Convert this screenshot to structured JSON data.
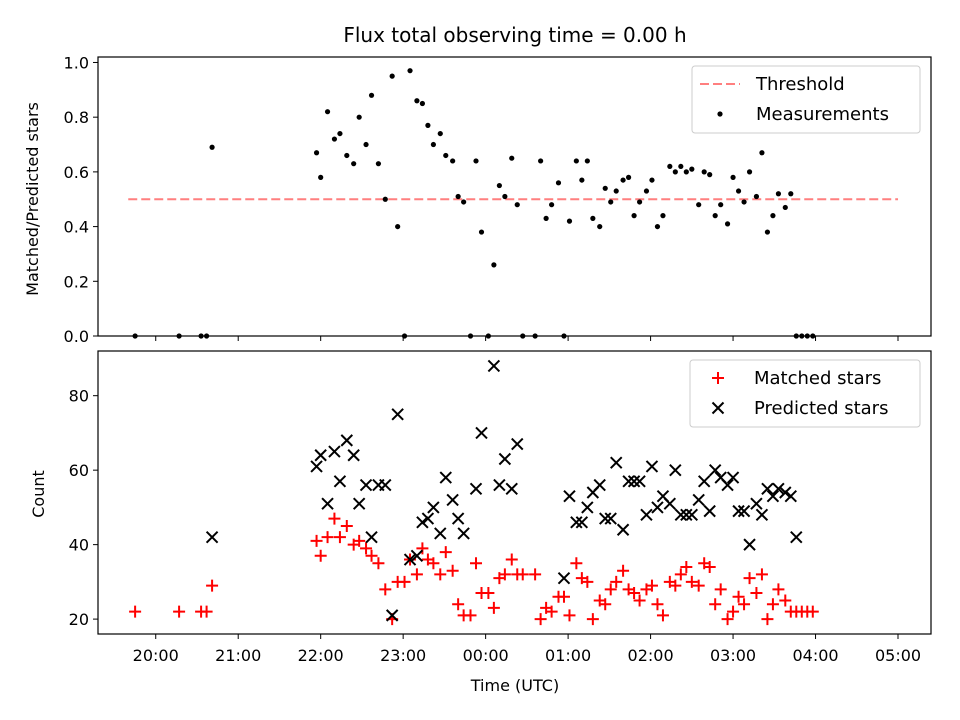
{
  "chart_data": [
    {
      "type": "scatter",
      "title": "Flux total observing time = 0.00 h",
      "ylabel": "Matched/Predicted stars",
      "ylim": [
        0,
        1.02
      ],
      "yticks": [
        0.0,
        0.2,
        0.4,
        0.6,
        0.8,
        1.0
      ],
      "ytick_labels": [
        "0.0",
        "0.2",
        "0.4",
        "0.6",
        "0.8",
        "1.0"
      ],
      "xticks": [
        "20:00",
        "21:00",
        "22:00",
        "23:00",
        "00:00",
        "01:00",
        "02:00",
        "03:00",
        "04:00",
        "05:00"
      ],
      "legend": {
        "position": "upper right",
        "items": [
          "Threshold",
          "Measurements"
        ]
      },
      "threshold": {
        "name": "Threshold",
        "value": 0.5,
        "x_start": "19:40",
        "x_end": "05:00",
        "color": "#ff7f7f"
      },
      "series": [
        {
          "name": "Measurements",
          "marker": "dot",
          "color": "#000000",
          "points": [
            [
              "19:45",
              0.0
            ],
            [
              "20:17",
              0.0
            ],
            [
              "20:33",
              0.0
            ],
            [
              "20:37",
              0.0
            ],
            [
              "20:41",
              0.69
            ],
            [
              "21:57",
              0.67
            ],
            [
              "22:00",
              0.58
            ],
            [
              "22:05",
              0.82
            ],
            [
              "22:10",
              0.72
            ],
            [
              "22:14",
              0.74
            ],
            [
              "22:19",
              0.66
            ],
            [
              "22:24",
              0.63
            ],
            [
              "22:28",
              0.8
            ],
            [
              "22:33",
              0.7
            ],
            [
              "22:37",
              0.88
            ],
            [
              "22:42",
              0.63
            ],
            [
              "22:47",
              0.5
            ],
            [
              "22:52",
              0.95
            ],
            [
              "22:56",
              0.4
            ],
            [
              "23:01",
              0.0
            ],
            [
              "23:05",
              0.97
            ],
            [
              "23:10",
              0.86
            ],
            [
              "23:14",
              0.85
            ],
            [
              "23:18",
              0.77
            ],
            [
              "23:22",
              0.7
            ],
            [
              "23:27",
              0.74
            ],
            [
              "23:31",
              0.66
            ],
            [
              "23:36",
              0.64
            ],
            [
              "23:40",
              0.51
            ],
            [
              "23:44",
              0.49
            ],
            [
              "23:49",
              0.0
            ],
            [
              "23:53",
              0.64
            ],
            [
              "23:57",
              0.38
            ],
            [
              "00:02",
              0.0
            ],
            [
              "00:06",
              0.26
            ],
            [
              "00:10",
              0.55
            ],
            [
              "00:14",
              0.51
            ],
            [
              "00:19",
              0.65
            ],
            [
              "00:23",
              0.48
            ],
            [
              "00:27",
              0.0
            ],
            [
              "00:36",
              0.0
            ],
            [
              "00:40",
              0.64
            ],
            [
              "00:44",
              0.43
            ],
            [
              "00:48",
              0.48
            ],
            [
              "00:53",
              0.56
            ],
            [
              "00:57",
              0.0
            ],
            [
              "01:01",
              0.42
            ],
            [
              "01:06",
              0.64
            ],
            [
              "01:10",
              0.57
            ],
            [
              "01:14",
              0.64
            ],
            [
              "01:18",
              0.43
            ],
            [
              "01:23",
              0.4
            ],
            [
              "01:27",
              0.54
            ],
            [
              "01:31",
              0.49
            ],
            [
              "01:35",
              0.53
            ],
            [
              "01:40",
              0.57
            ],
            [
              "01:44",
              0.58
            ],
            [
              "01:48",
              0.44
            ],
            [
              "01:52",
              0.49
            ],
            [
              "01:57",
              0.53
            ],
            [
              "02:01",
              0.57
            ],
            [
              "02:05",
              0.4
            ],
            [
              "02:09",
              0.44
            ],
            [
              "02:14",
              0.62
            ],
            [
              "02:18",
              0.6
            ],
            [
              "02:22",
              0.62
            ],
            [
              "02:26",
              0.6
            ],
            [
              "02:30",
              0.61
            ],
            [
              "02:35",
              0.48
            ],
            [
              "02:39",
              0.6
            ],
            [
              "02:43",
              0.59
            ],
            [
              "02:47",
              0.44
            ],
            [
              "02:51",
              0.48
            ],
            [
              "02:56",
              0.41
            ],
            [
              "03:00",
              0.58
            ],
            [
              "03:04",
              0.53
            ],
            [
              "03:08",
              0.49
            ],
            [
              "03:12",
              0.6
            ],
            [
              "03:17",
              0.51
            ],
            [
              "03:21",
              0.67
            ],
            [
              "03:25",
              0.38
            ],
            [
              "03:29",
              0.44
            ],
            [
              "03:33",
              0.52
            ],
            [
              "03:38",
              0.47
            ],
            [
              "03:42",
              0.52
            ],
            [
              "03:46",
              0.0
            ],
            [
              "03:50",
              0.0
            ],
            [
              "03:54",
              0.0
            ],
            [
              "03:58",
              0.0
            ]
          ]
        }
      ]
    },
    {
      "type": "scatter",
      "xlabel": "Time (UTC)",
      "ylabel": "Count",
      "ylim": [
        16,
        92
      ],
      "yticks": [
        20,
        40,
        60,
        80
      ],
      "ytick_labels": [
        "20",
        "40",
        "60",
        "80"
      ],
      "xticks": [
        "20:00",
        "21:00",
        "22:00",
        "23:00",
        "00:00",
        "01:00",
        "02:00",
        "03:00",
        "04:00",
        "05:00"
      ],
      "legend": {
        "position": "upper right",
        "items": [
          "Matched stars",
          "Predicted stars"
        ]
      },
      "series": [
        {
          "name": "Matched stars",
          "marker": "plus",
          "color": "#ff0000",
          "points": [
            [
              "19:45",
              22
            ],
            [
              "20:17",
              22
            ],
            [
              "20:33",
              22
            ],
            [
              "20:37",
              22
            ],
            [
              "20:41",
              29
            ],
            [
              "21:57",
              41
            ],
            [
              "22:00",
              37
            ],
            [
              "22:05",
              42
            ],
            [
              "22:10",
              47
            ],
            [
              "22:14",
              42
            ],
            [
              "22:19",
              45
            ],
            [
              "22:24",
              40
            ],
            [
              "22:28",
              41
            ],
            [
              "22:33",
              39
            ],
            [
              "22:37",
              37
            ],
            [
              "22:42",
              35
            ],
            [
              "22:47",
              28
            ],
            [
              "22:52",
              20
            ],
            [
              "22:56",
              30
            ],
            [
              "23:01",
              30
            ],
            [
              "23:05",
              36
            ],
            [
              "23:10",
              32
            ],
            [
              "23:14",
              39
            ],
            [
              "23:18",
              36
            ],
            [
              "23:22",
              35
            ],
            [
              "23:27",
              32
            ],
            [
              "23:31",
              38
            ],
            [
              "23:36",
              33
            ],
            [
              "23:40",
              24
            ],
            [
              "23:44",
              21
            ],
            [
              "23:49",
              21
            ],
            [
              "23:53",
              35
            ],
            [
              "23:57",
              27
            ],
            [
              "00:02",
              27
            ],
            [
              "00:06",
              23
            ],
            [
              "00:10",
              31
            ],
            [
              "00:14",
              32
            ],
            [
              "00:19",
              36
            ],
            [
              "00:23",
              32
            ],
            [
              "00:27",
              32
            ],
            [
              "00:36",
              32
            ],
            [
              "00:40",
              20
            ],
            [
              "00:44",
              23
            ],
            [
              "00:48",
              22
            ],
            [
              "00:53",
              26
            ],
            [
              "00:57",
              26
            ],
            [
              "01:01",
              21
            ],
            [
              "01:06",
              35
            ],
            [
              "01:10",
              31
            ],
            [
              "01:14",
              30
            ],
            [
              "01:18",
              20
            ],
            [
              "01:23",
              25
            ],
            [
              "01:27",
              24
            ],
            [
              "01:31",
              28
            ],
            [
              "01:35",
              30
            ],
            [
              "01:40",
              33
            ],
            [
              "01:44",
              28
            ],
            [
              "01:48",
              27
            ],
            [
              "01:52",
              25
            ],
            [
              "01:57",
              28
            ],
            [
              "02:01",
              29
            ],
            [
              "02:05",
              24
            ],
            [
              "02:09",
              21
            ],
            [
              "02:14",
              30
            ],
            [
              "02:18",
              29
            ],
            [
              "02:22",
              32
            ],
            [
              "02:26",
              34
            ],
            [
              "02:30",
              30
            ],
            [
              "02:35",
              29
            ],
            [
              "02:39",
              35
            ],
            [
              "02:43",
              34
            ],
            [
              "02:47",
              24
            ],
            [
              "02:51",
              28
            ],
            [
              "02:56",
              20
            ],
            [
              "03:00",
              22
            ],
            [
              "03:04",
              26
            ],
            [
              "03:08",
              24
            ],
            [
              "03:12",
              31
            ],
            [
              "03:17",
              27
            ],
            [
              "03:21",
              32
            ],
            [
              "03:25",
              20
            ],
            [
              "03:29",
              24
            ],
            [
              "03:33",
              28
            ],
            [
              "03:38",
              25
            ],
            [
              "03:42",
              22
            ],
            [
              "03:46",
              22
            ],
            [
              "03:50",
              22
            ],
            [
              "03:54",
              22
            ],
            [
              "03:58",
              22
            ]
          ]
        },
        {
          "name": "Predicted stars",
          "marker": "x",
          "color": "#000000",
          "points": [
            [
              "20:41",
              42
            ],
            [
              "21:57",
              61
            ],
            [
              "22:00",
              64
            ],
            [
              "22:05",
              51
            ],
            [
              "22:10",
              65
            ],
            [
              "22:14",
              57
            ],
            [
              "22:19",
              68
            ],
            [
              "22:24",
              64
            ],
            [
              "22:28",
              51
            ],
            [
              "22:33",
              56
            ],
            [
              "22:37",
              42
            ],
            [
              "22:42",
              56
            ],
            [
              "22:47",
              56
            ],
            [
              "22:52",
              21
            ],
            [
              "22:56",
              75
            ],
            [
              "23:05",
              36
            ],
            [
              "23:10",
              37
            ],
            [
              "23:14",
              46
            ],
            [
              "23:18",
              47
            ],
            [
              "23:22",
              50
            ],
            [
              "23:27",
              43
            ],
            [
              "23:31",
              58
            ],
            [
              "23:36",
              52
            ],
            [
              "23:40",
              47
            ],
            [
              "23:44",
              43
            ],
            [
              "23:53",
              55
            ],
            [
              "23:57",
              70
            ],
            [
              "00:06",
              88
            ],
            [
              "00:10",
              56
            ],
            [
              "00:14",
              63
            ],
            [
              "00:19",
              55
            ],
            [
              "00:23",
              67
            ],
            [
              "00:57",
              31
            ],
            [
              "01:01",
              53
            ],
            [
              "01:06",
              46
            ],
            [
              "01:10",
              46
            ],
            [
              "01:14",
              50
            ],
            [
              "01:18",
              54
            ],
            [
              "01:23",
              56
            ],
            [
              "01:27",
              47
            ],
            [
              "01:31",
              47
            ],
            [
              "01:35",
              62
            ],
            [
              "01:40",
              44
            ],
            [
              "01:44",
              57
            ],
            [
              "01:48",
              57
            ],
            [
              "01:52",
              57
            ],
            [
              "01:57",
              48
            ],
            [
              "02:01",
              61
            ],
            [
              "02:05",
              50
            ],
            [
              "02:09",
              53
            ],
            [
              "02:14",
              51
            ],
            [
              "02:18",
              60
            ],
            [
              "02:22",
              48
            ],
            [
              "02:26",
              48
            ],
            [
              "02:30",
              48
            ],
            [
              "02:35",
              52
            ],
            [
              "02:39",
              57
            ],
            [
              "02:43",
              49
            ],
            [
              "02:47",
              60
            ],
            [
              "02:51",
              58
            ],
            [
              "02:56",
              56
            ],
            [
              "03:00",
              58
            ],
            [
              "03:04",
              49
            ],
            [
              "03:08",
              49
            ],
            [
              "03:12",
              40
            ],
            [
              "03:17",
              51
            ],
            [
              "03:21",
              48
            ],
            [
              "03:25",
              55
            ],
            [
              "03:29",
              53
            ],
            [
              "03:33",
              55
            ],
            [
              "03:38",
              54
            ],
            [
              "03:42",
              53
            ],
            [
              "03:46",
              42
            ]
          ]
        }
      ]
    }
  ]
}
